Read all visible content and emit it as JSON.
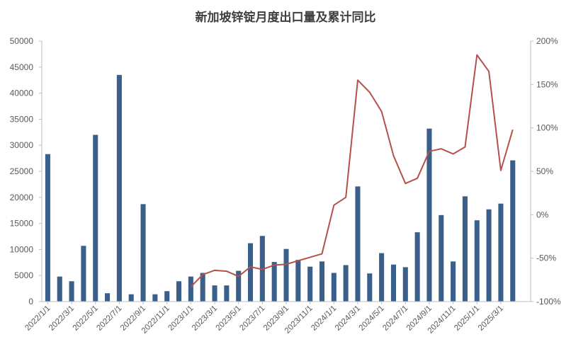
{
  "chart_data": {
    "type": "bar+line",
    "title": "新加坡锌锭月度出口量及累计同比",
    "x": [
      "2022/1/1",
      "2022/2/1",
      "2022/3/1",
      "2022/4/1",
      "2022/5/1",
      "2022/6/1",
      "2022/7/1",
      "2022/8/1",
      "2022/9/1",
      "2022/10/1",
      "2022/11/1",
      "2022/12/1",
      "2023/1/1",
      "2023/2/1",
      "2023/3/1",
      "2023/4/1",
      "2023/5/1",
      "2023/6/1",
      "2023/7/1",
      "2023/8/1",
      "2023/9/1",
      "2023/10/1",
      "2023/11/1",
      "2023/12/1",
      "2024/1/1",
      "2024/2/1",
      "2024/3/1",
      "2024/4/1",
      "2024/5/1",
      "2024/6/1",
      "2024/7/1",
      "2024/8/1",
      "2024/9/1",
      "2024/10/1",
      "2024/11/1",
      "2024/12/1",
      "2025/1/1",
      "2025/2/1",
      "2025/3/1",
      "2025/4/1",
      "2025/5/1"
    ],
    "x_tick_labels": [
      "2022/1/1",
      "2022/3/1",
      "2022/5/1",
      "2022/7/1",
      "2022/9/1",
      "2022/11/1",
      "2023/1/1",
      "2023/3/1",
      "2023/5/1",
      "2023/7/1",
      "2023/9/1",
      "2023/11/1",
      "2024/1/1",
      "2024/3/1",
      "2024/5/1",
      "2024/7/1",
      "2024/9/1",
      "2024/11/1",
      "2025/1/1",
      "2025/3/1"
    ],
    "bars": {
      "axis": "left",
      "color": "#3A5F8A",
      "values": [
        28300,
        4800,
        3900,
        10700,
        32000,
        1600,
        43500,
        1400,
        18700,
        1400,
        2000,
        3900,
        4800,
        5500,
        3100,
        3100,
        5900,
        11200,
        12600,
        7600,
        10100,
        8000,
        6700,
        7700,
        5500,
        7000,
        22100,
        5400,
        9300,
        7100,
        6600,
        13300,
        33200,
        16600,
        7700,
        20200,
        15600,
        17700,
        18800,
        27100,
        null
      ]
    },
    "line": {
      "axis": "right",
      "color": "#B5504B",
      "values": [
        null,
        null,
        null,
        null,
        null,
        null,
        null,
        null,
        null,
        null,
        null,
        null,
        -0.83,
        -0.69,
        -0.64,
        -0.65,
        -0.71,
        -0.6,
        -0.63,
        -0.58,
        -0.57,
        -0.53,
        -0.49,
        -0.45,
        0.11,
        0.2,
        1.55,
        1.41,
        1.19,
        0.68,
        0.36,
        0.42,
        0.73,
        0.76,
        0.7,
        0.78,
        1.84,
        1.65,
        0.51,
        0.98,
        null
      ]
    },
    "y_left": {
      "min": 0,
      "max": 50000,
      "ticks": [
        "0",
        "5000",
        "10000",
        "15000",
        "20000",
        "25000",
        "30000",
        "35000",
        "40000",
        "45000",
        "50000"
      ]
    },
    "y_right": {
      "min": -1.0,
      "max": 2.0,
      "ticks": [
        "-100%",
        "-50%",
        "0%",
        "50%",
        "100%",
        "150%",
        "200%"
      ]
    },
    "grid": false,
    "legend": "none"
  }
}
